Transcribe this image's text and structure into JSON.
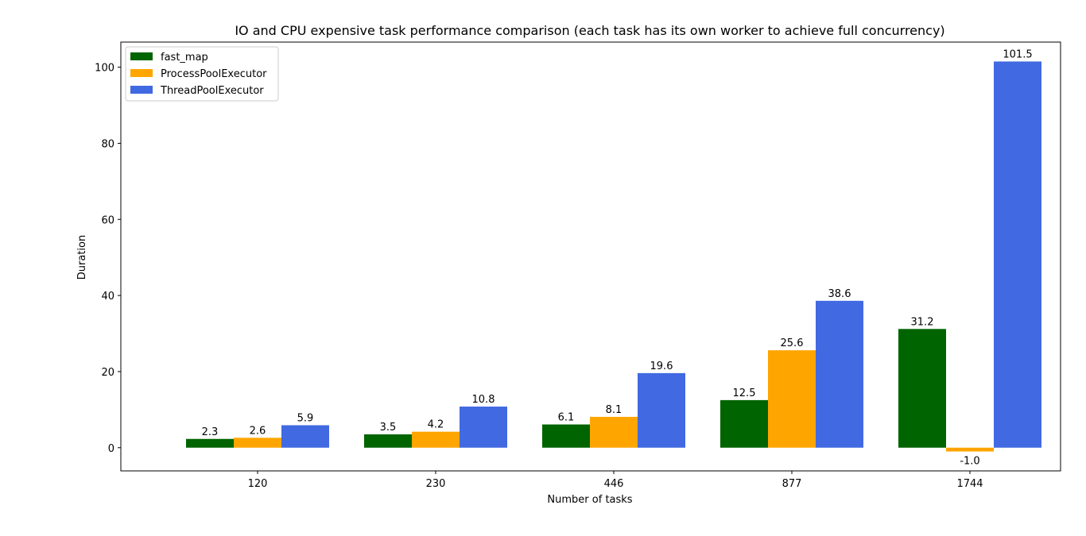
{
  "chart_data": {
    "type": "bar",
    "title": "IO and CPU expensive task performance comparison (each task has its own worker to achieve full concurrency)",
    "xlabel": "Number of tasks",
    "ylabel": "Duration",
    "categories": [
      "120",
      "230",
      "446",
      "877",
      "1744"
    ],
    "series": [
      {
        "name": "fast_map",
        "color": "#006400",
        "values": [
          2.3,
          3.5,
          6.1,
          12.5,
          31.2
        ],
        "labels": [
          "2.3",
          "3.5",
          "6.1",
          "12.5",
          "31.2"
        ]
      },
      {
        "name": "ProcessPoolExecutor",
        "color": "#FFA500",
        "values": [
          2.6,
          4.2,
          8.1,
          25.6,
          -1.0
        ],
        "labels": [
          "2.6",
          "4.2",
          "8.1",
          "25.6",
          "-1.0"
        ]
      },
      {
        "name": "ThreadPoolExecutor",
        "color": "#4169E1",
        "values": [
          5.9,
          10.8,
          19.6,
          38.6,
          101.5
        ],
        "labels": [
          "5.9",
          "10.8",
          "19.6",
          "38.6",
          "101.5"
        ]
      }
    ],
    "ylim": [
      -6.1,
      106.6
    ],
    "yticks": [
      0,
      20,
      40,
      60,
      80,
      100
    ],
    "ytick_labels": [
      "0",
      "20",
      "40",
      "60",
      "80",
      "100"
    ],
    "grid": false,
    "legend_position": "top-left"
  }
}
